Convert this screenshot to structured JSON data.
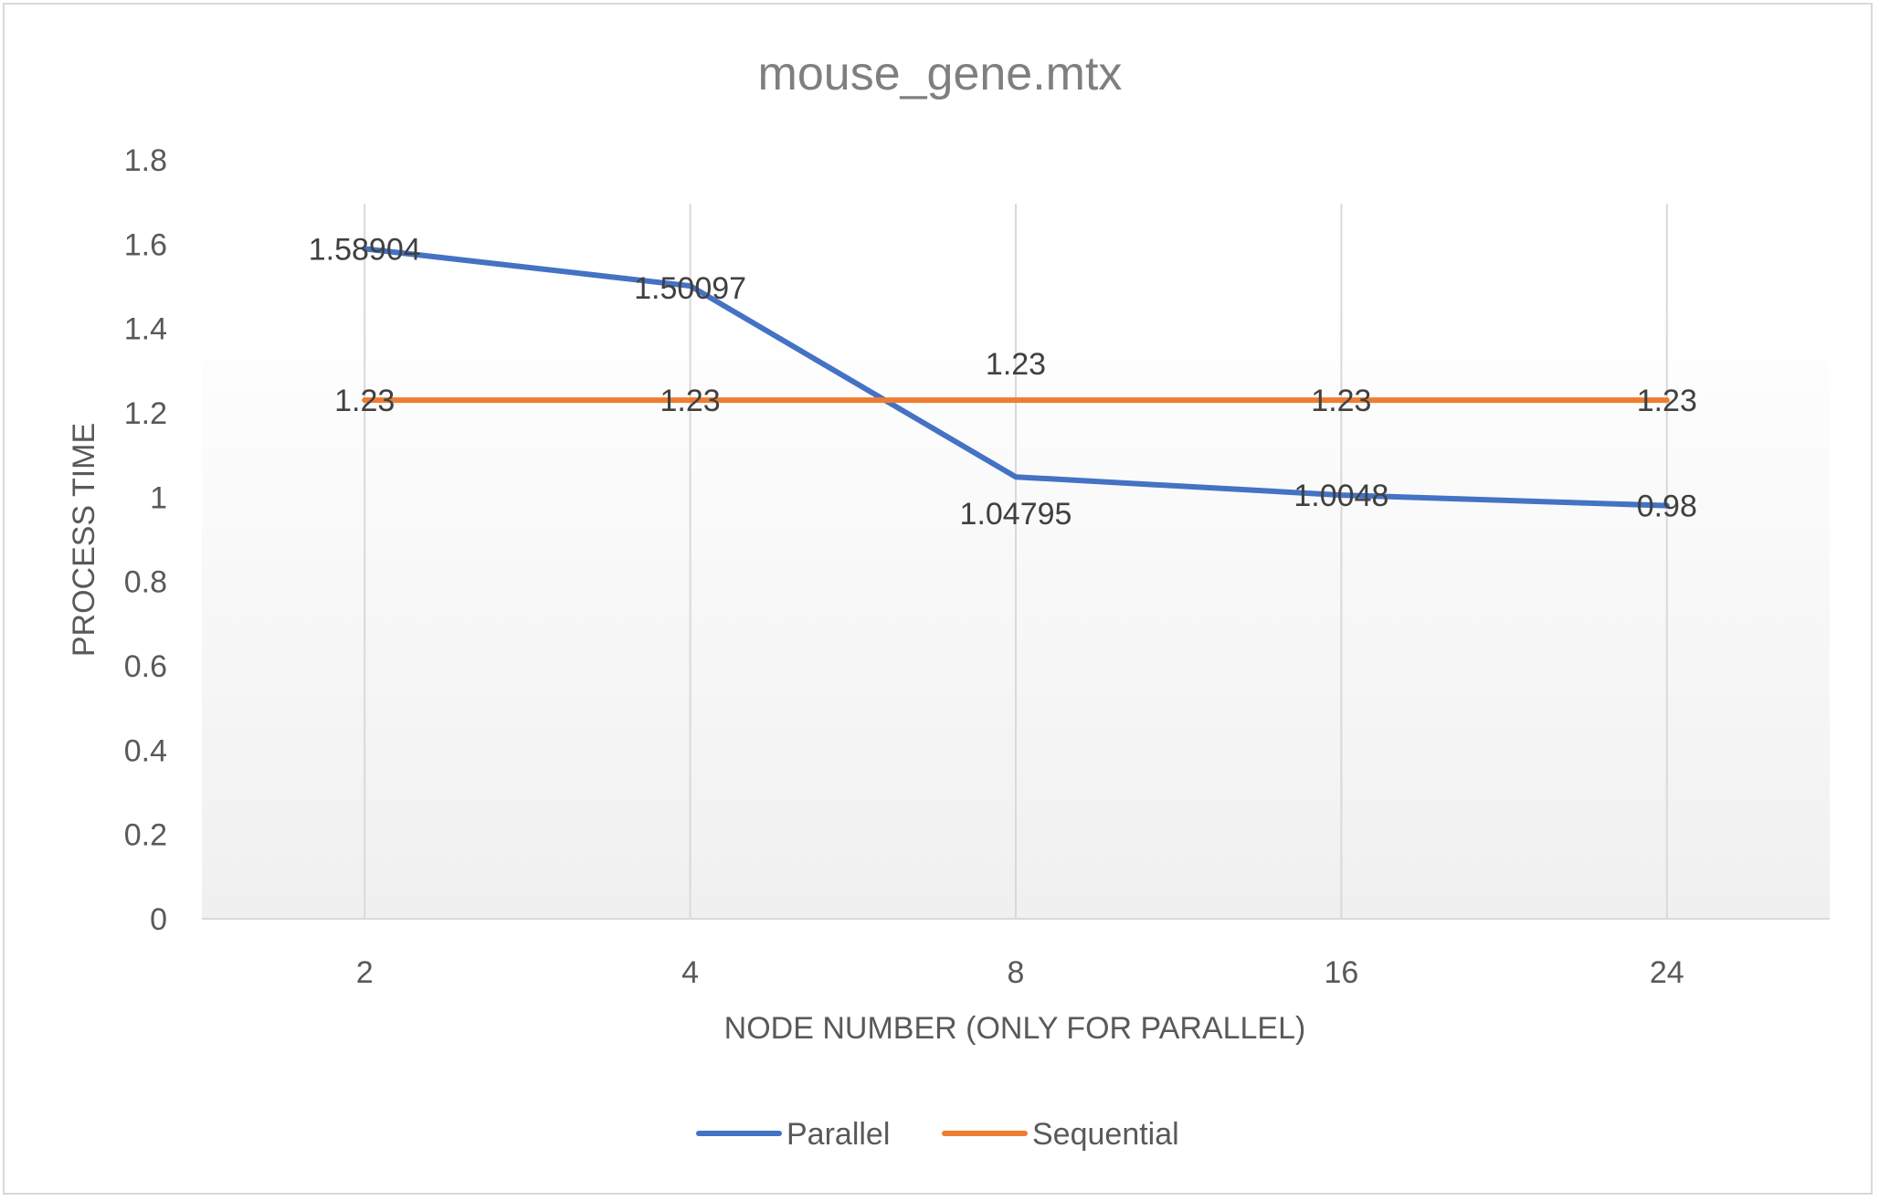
{
  "chart_data": {
    "type": "line",
    "title": "mouse_gene.mtx",
    "xlabel": "NODE NUMBER (ONLY FOR PARALLEL)",
    "ylabel": "PROCESS TIME",
    "categories": [
      "2",
      "4",
      "8",
      "16",
      "24"
    ],
    "ylim": [
      0,
      1.8
    ],
    "yticks": [
      "0",
      "0.2",
      "0.4",
      "0.6",
      "0.8",
      "1",
      "1.2",
      "1.4",
      "1.6",
      "1.8"
    ],
    "grid": "vertical",
    "legend_position": "bottom",
    "series": [
      {
        "name": "Parallel",
        "color": "#4472c4",
        "values": [
          1.58904,
          1.50097,
          1.04795,
          1.0048,
          0.98
        ],
        "labels": [
          "1.58904",
          "1.50097",
          "1.04795",
          "1.0048",
          "0.98"
        ]
      },
      {
        "name": "Sequential",
        "color": "#ed7d31",
        "values": [
          1.23,
          1.23,
          1.23,
          1.23,
          1.23
        ],
        "labels": [
          "1.23",
          "1.23",
          "1.23",
          "1.23",
          "1.23"
        ]
      }
    ]
  }
}
